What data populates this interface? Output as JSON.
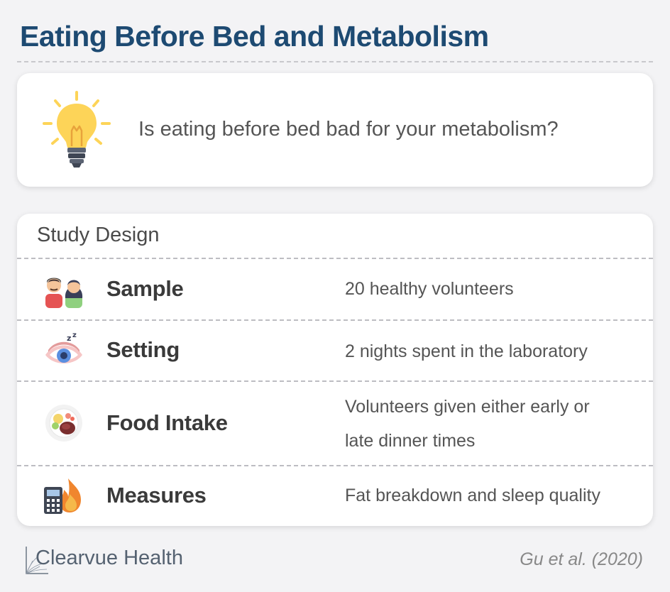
{
  "header": {
    "title": "Eating Before Bed and Metabolism"
  },
  "question": {
    "icon": "lightbulb-icon",
    "text": "Is eating before bed bad for your metabolism?",
    "colors": {
      "bulb": "#fdd458",
      "base": "#3f4654"
    }
  },
  "study_design": {
    "heading": "Study Design",
    "rows": [
      {
        "icon": "couple-icon",
        "label": "Sample",
        "value": "20 healthy volunteers"
      },
      {
        "icon": "sleepy-eye-icon",
        "label": "Setting",
        "value": "2 nights spent in the laboratory"
      },
      {
        "icon": "food-plate-icon",
        "label": "Food Intake",
        "value_lines": [
          "Volunteers given either early or",
          "late dinner times"
        ]
      },
      {
        "icon": "calculator-flame-icon",
        "label": "Measures",
        "value": "Fat breakdown and sleep quality"
      }
    ]
  },
  "footer": {
    "brand": "Clearvue Health",
    "citation": "Gu et al. (2020)"
  },
  "colors": {
    "title": "#1d4a72",
    "background": "#f3f3f5",
    "card": "#ffffff"
  }
}
